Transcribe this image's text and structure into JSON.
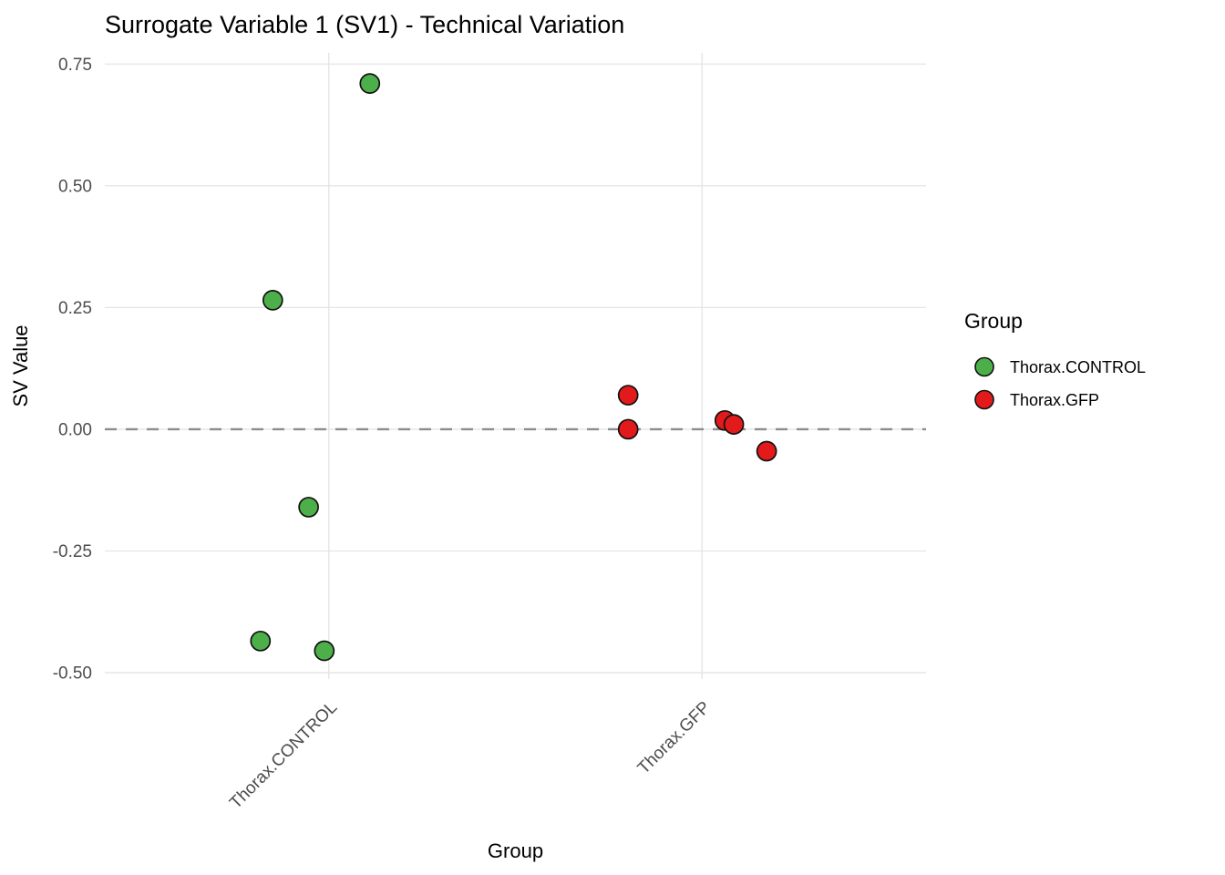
{
  "chart_data": {
    "type": "scatter",
    "title": "Surrogate Variable 1 (SV1) - Technical Variation",
    "xlabel": "Group",
    "ylabel": "SV Value",
    "background": "#ffffff",
    "grid_color": "#e4e4e4",
    "text_color": "#000000",
    "tick_label_color": "#4d4d4d",
    "x_range": [
      0.4,
      2.6
    ],
    "y_range": [
      -0.513,
      0.773
    ],
    "categories": [
      {
        "label": "Thorax.CONTROL",
        "position": 1
      },
      {
        "label": "Thorax.GFP",
        "position": 2
      }
    ],
    "y_ticks": [
      {
        "value": 0.75,
        "label": "0.75"
      },
      {
        "value": 0.5,
        "label": "0.50"
      },
      {
        "value": 0.25,
        "label": "0.25"
      },
      {
        "value": 0.0,
        "label": "0.00"
      },
      {
        "value": -0.25,
        "label": "-0.25"
      },
      {
        "value": -0.5,
        "label": "-0.50"
      }
    ],
    "reference_line": {
      "y": 0,
      "style": "dashed",
      "color": "#8c8c8c"
    },
    "point_style": {
      "radius": 10.5,
      "stroke": "#111111",
      "stroke_width": 1.7
    },
    "series": [
      {
        "name": "Thorax.CONTROL",
        "color": "#4daf4a",
        "points": [
          {
            "x": 1.11,
            "y": 0.71
          },
          {
            "x": 0.85,
            "y": 0.265
          },
          {
            "x": 0.946,
            "y": -0.16
          },
          {
            "x": 0.817,
            "y": -0.435
          },
          {
            "x": 0.988,
            "y": -0.455
          }
        ]
      },
      {
        "name": "Thorax.GFP",
        "color": "#e31a1c",
        "points": [
          {
            "x": 1.802,
            "y": 0.07
          },
          {
            "x": 1.802,
            "y": 0.0
          },
          {
            "x": 2.061,
            "y": 0.018
          },
          {
            "x": 2.085,
            "y": 0.01
          },
          {
            "x": 2.173,
            "y": -0.045
          }
        ]
      }
    ],
    "legend": {
      "title": "Group",
      "position": "right",
      "entries": [
        {
          "label": "Thorax.CONTROL",
          "color": "#4daf4a"
        },
        {
          "label": "Thorax.GFP",
          "color": "#e31a1c"
        }
      ]
    }
  }
}
